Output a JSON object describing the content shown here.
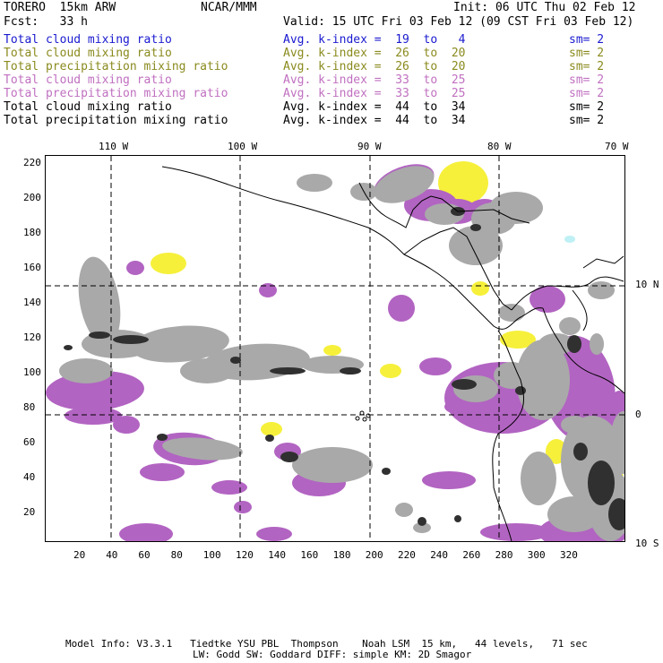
{
  "header": {
    "model": "TORERO  15km ARW",
    "center": "NCAR/MMM",
    "init": "Init: 06 UTC Thu 02 Feb 12",
    "fcst": "Fcst:   33 h",
    "valid": "Valid: 15 UTC Fri 03 Feb 12 (09 CST Fri 03 Feb 12)"
  },
  "legend": [
    {
      "field": "Total cloud mixing ratio",
      "kindex": "Avg. k-index =  19  to   4",
      "sm": "sm= 2",
      "color": "#1a1ad0"
    },
    {
      "field": "Total cloud mixing ratio",
      "kindex": "Avg. k-index =  26  to  20",
      "sm": "sm= 2",
      "color": "#8a8a1e"
    },
    {
      "field": "Total precipitation mixing ratio",
      "kindex": "Avg. k-index =  26  to  20",
      "sm": "sm= 2",
      "color": "#8a8a1e"
    },
    {
      "field": "Total cloud mixing ratio",
      "kindex": "Avg. k-index =  33  to  25",
      "sm": "sm= 2",
      "color": "#c070c0"
    },
    {
      "field": "Total precipitation mixing ratio",
      "kindex": "Avg. k-index =  33  to  25",
      "sm": "sm= 2",
      "color": "#c070c0"
    },
    {
      "field": "Total cloud mixing ratio",
      "kindex": "Avg. k-index =  44  to  34",
      "sm": "sm= 2",
      "color": "#000000"
    },
    {
      "field": "Total precipitation mixing ratio",
      "kindex": "Avg. k-index =  44  to  34",
      "sm": "sm= 2",
      "color": "#000000"
    }
  ],
  "map": {
    "lon_labels": [
      "110 W",
      "100 W",
      "90 W",
      "80 W",
      "70 W"
    ],
    "lat_labels": [
      "10 N",
      "0",
      "10 S"
    ],
    "x_ticks": [
      "20",
      "40",
      "60",
      "80",
      "100",
      "120",
      "140",
      "160",
      "180",
      "200",
      "220",
      "240",
      "260",
      "280",
      "300",
      "320"
    ],
    "y_ticks": [
      "220",
      "200",
      "180",
      "160",
      "140",
      "120",
      "100",
      "80",
      "60",
      "40",
      "20"
    ],
    "colors": {
      "cloud": "#a9a9a9",
      "dark": "#303030",
      "precip": "#b264c2",
      "yellow": "#f6f03a",
      "cyan": "#bff0f5"
    }
  },
  "footer": {
    "line1": "Model Info: V3.3.1   Tiedtke YSU PBL  Thompson    Noah LSM  15 km,   44 levels,   71 sec",
    "line2": "LW: Godd SW: Goddard DIFF: simple KM: 2D Smagor"
  }
}
